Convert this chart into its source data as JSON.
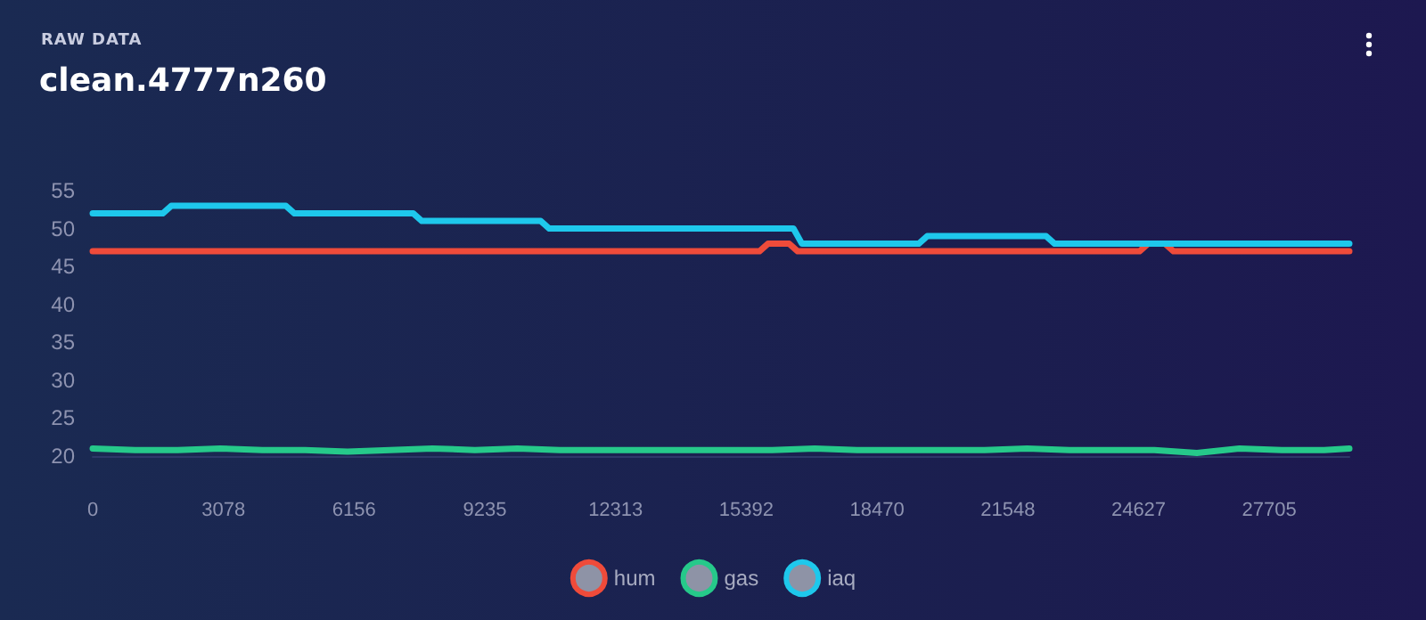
{
  "chart_data": {
    "type": "line",
    "subtitle": "RAW DATA",
    "title": "clean.4777n260",
    "xlim": [
      0,
      29590
    ],
    "xticks": [
      0,
      3078,
      6156,
      9235,
      12313,
      15392,
      18470,
      21548,
      24627,
      27705
    ],
    "ylim": [
      20,
      55
    ],
    "yticks": [
      20,
      25,
      30,
      35,
      40,
      45,
      50,
      55
    ],
    "grid": false,
    "legend": "bottom",
    "marker": "none",
    "line_style": "solid",
    "series": [
      {
        "name": "hum",
        "color": "#ef4b3a",
        "x": [
          0,
          15700,
          15900,
          16400,
          16600,
          24650,
          24850,
          25250,
          25450,
          29590
        ],
        "values": [
          47,
          47,
          48,
          48,
          47,
          47,
          48,
          48,
          47,
          47
        ]
      },
      {
        "name": "gas",
        "color": "#26c98a",
        "x": [
          0,
          1000,
          2000,
          3000,
          4000,
          5000,
          6000,
          7000,
          8000,
          9000,
          10000,
          11000,
          12000,
          13000,
          14000,
          15000,
          16000,
          17000,
          18000,
          19000,
          20000,
          21000,
          22000,
          23000,
          24000,
          25000,
          26000,
          27000,
          28000,
          29000,
          29590
        ],
        "values": [
          21,
          20.8,
          20.8,
          21,
          20.8,
          20.8,
          20.6,
          20.8,
          21,
          20.8,
          21,
          20.8,
          20.8,
          20.8,
          20.8,
          20.8,
          20.8,
          21,
          20.8,
          20.8,
          20.8,
          20.8,
          21,
          20.8,
          20.8,
          20.8,
          20.4,
          21,
          20.8,
          20.8,
          21
        ]
      },
      {
        "name": "iaq",
        "color": "#1ec8ec",
        "x": [
          0,
          1650,
          1850,
          4550,
          4750,
          7550,
          7750,
          10550,
          10750,
          16500,
          16700,
          19450,
          19650,
          22450,
          22650,
          29590
        ],
        "values": [
          52,
          52,
          53,
          53,
          52,
          52,
          51,
          51,
          50,
          50,
          48,
          48,
          49,
          49,
          48,
          48
        ]
      }
    ]
  }
}
